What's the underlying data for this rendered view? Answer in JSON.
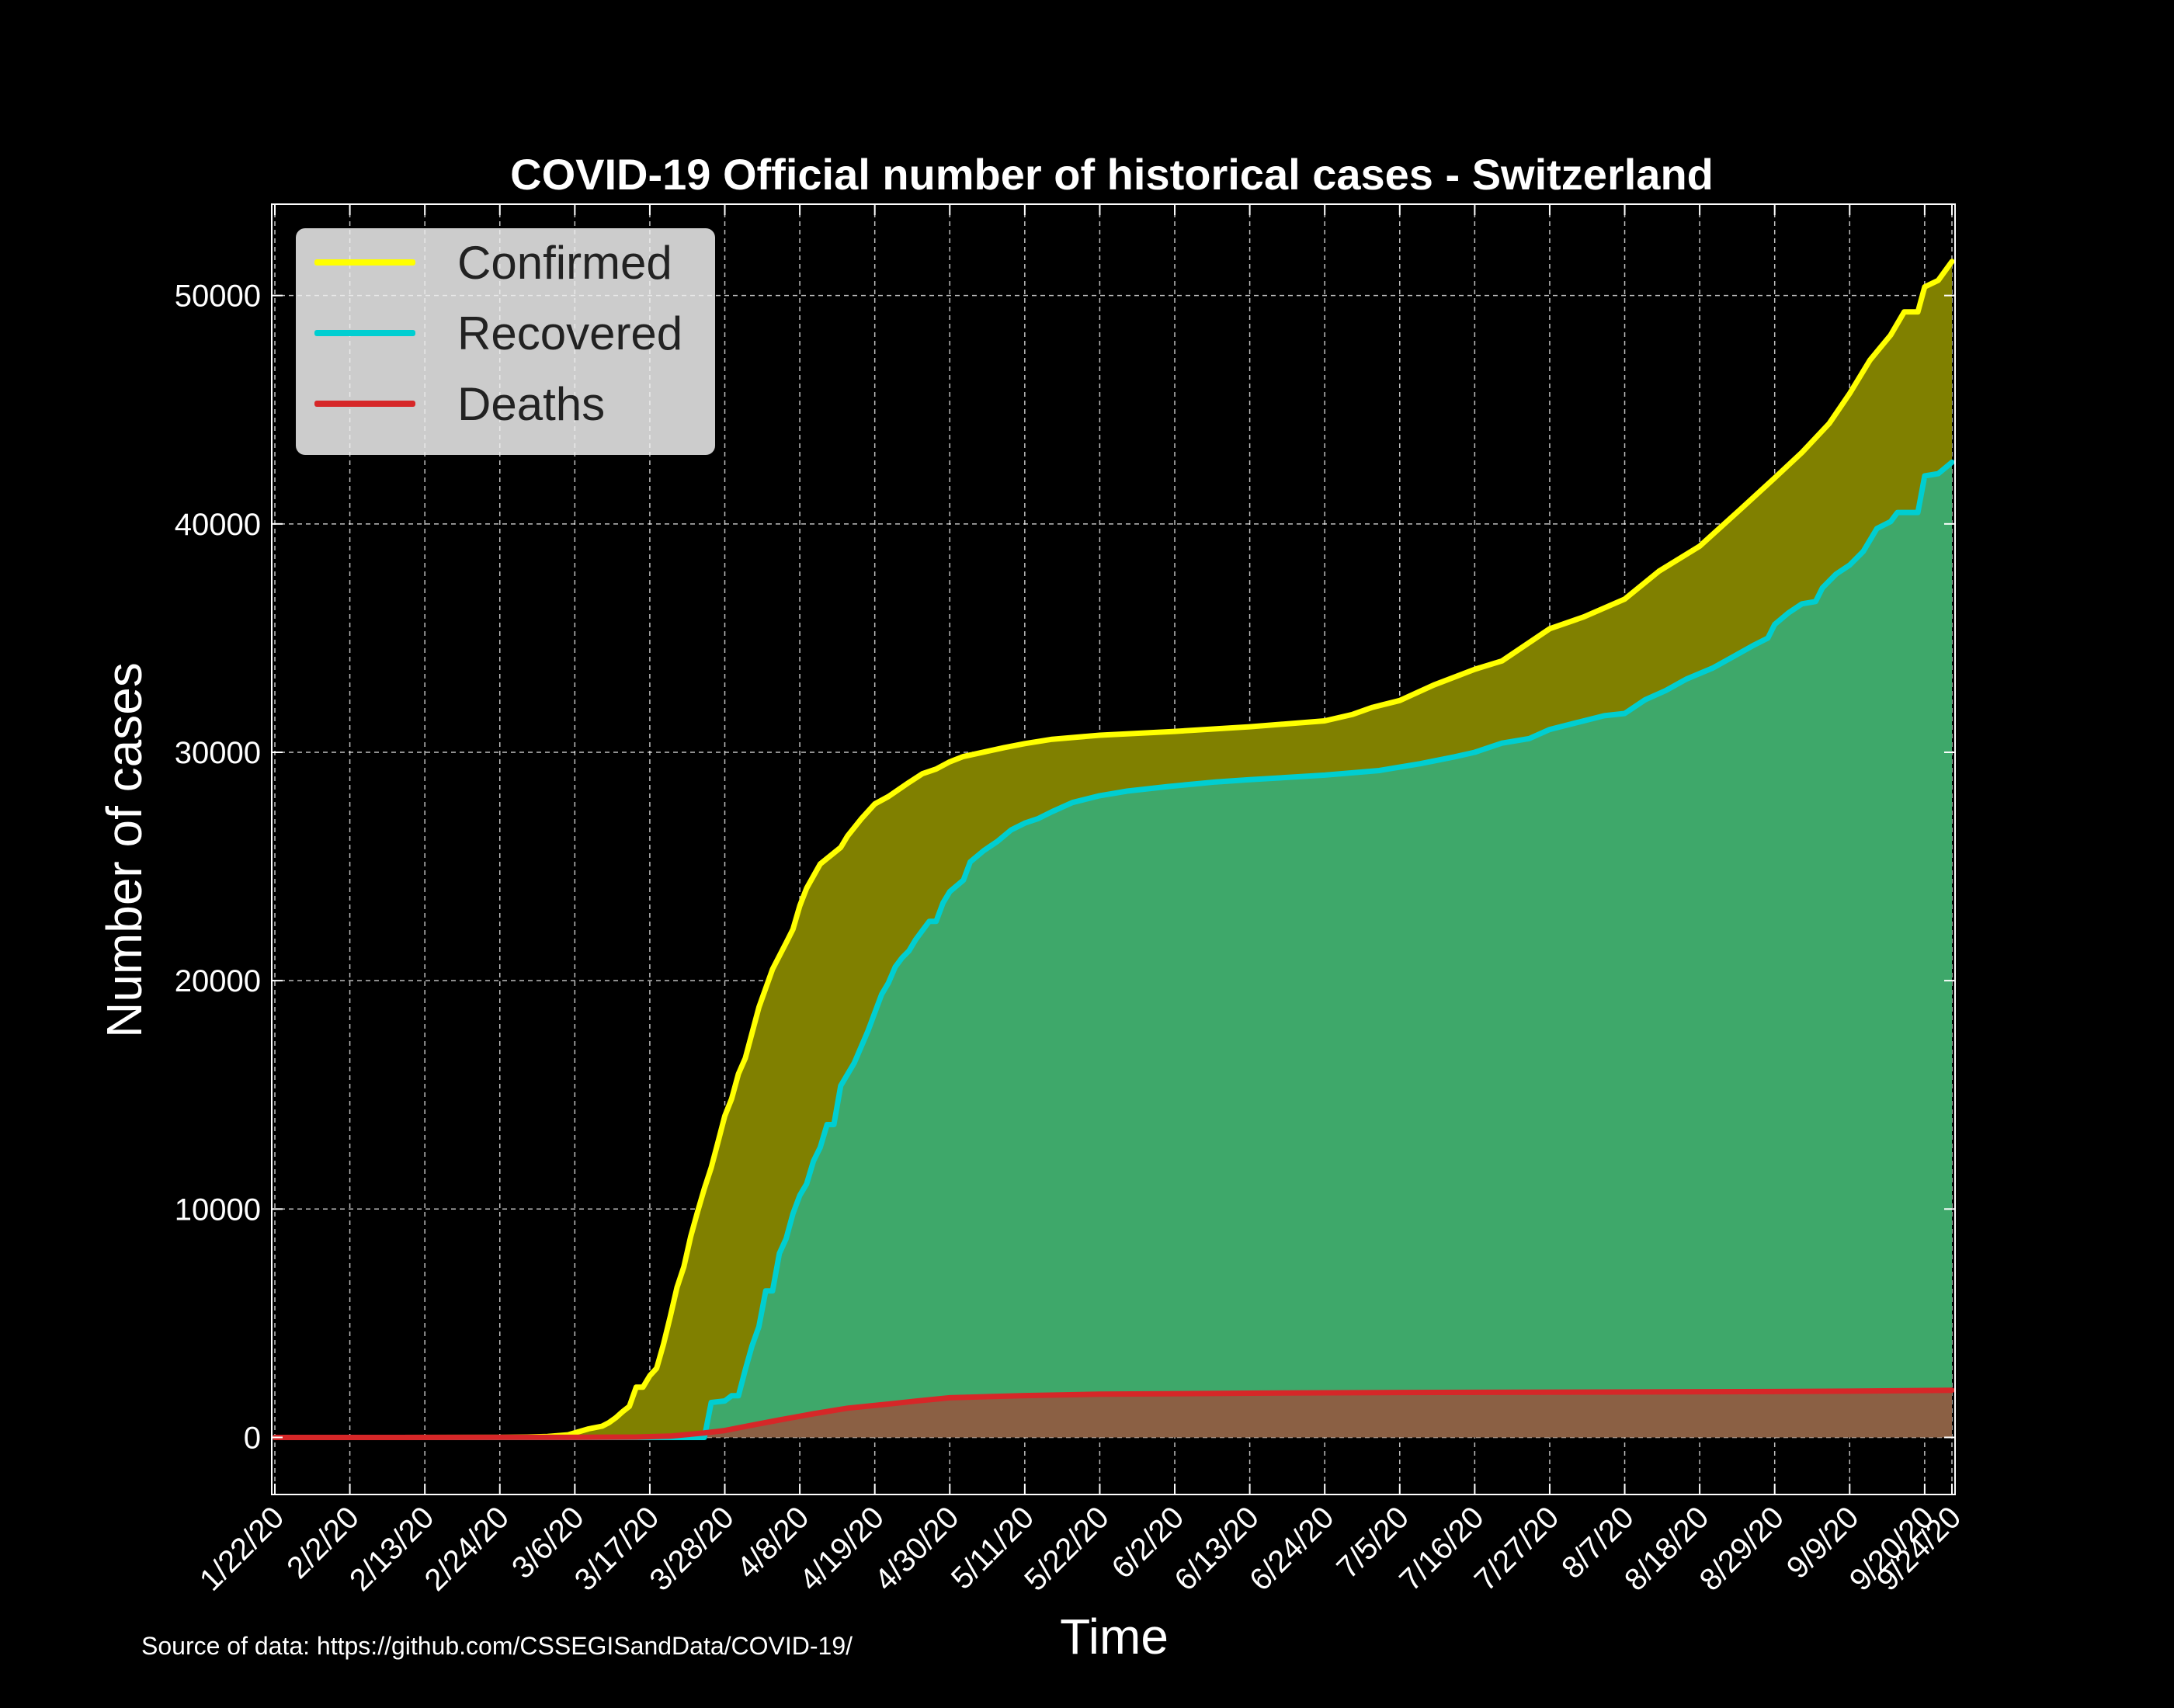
{
  "source_note": "Source of data: https://github.com/CSSEGISandData/COVID-19/",
  "chart_data": {
    "type": "area",
    "title": "COVID-19 Official number of historical cases - Switzerland",
    "xlabel": "Time",
    "ylabel": "Number of cases",
    "ylim": [
      -2500,
      54000
    ],
    "yticks": [
      0,
      10000,
      20000,
      30000,
      40000,
      50000
    ],
    "xtick_labels": [
      "1/22/20",
      "2/2/20",
      "2/13/20",
      "2/24/20",
      "3/6/20",
      "3/17/20",
      "3/28/20",
      "4/8/20",
      "4/19/20",
      "4/30/20",
      "5/11/20",
      "5/22/20",
      "6/2/20",
      "6/13/20",
      "6/24/20",
      "7/5/20",
      "7/16/20",
      "7/27/20",
      "8/7/20",
      "8/18/20",
      "8/29/20",
      "9/9/20",
      "9/20/20",
      "9/24/20"
    ],
    "grid": true,
    "legend_position": "top-left",
    "x_first": "1/22/20",
    "x_last": "9/24/20",
    "series": [
      {
        "name": "Confirmed",
        "color": "#ffff00",
        "fill": "#808000",
        "points": [
          [
            "1/22/20",
            0
          ],
          [
            "2/24/20",
            1
          ],
          [
            "2/28/20",
            15
          ],
          [
            "3/2/20",
            42
          ],
          [
            "3/5/20",
            114
          ],
          [
            "3/8/20",
            374
          ],
          [
            "3/10/20",
            491
          ],
          [
            "3/11/20",
            645
          ],
          [
            "3/12/20",
            858
          ],
          [
            "3/13/20",
            1125
          ],
          [
            "3/14/20",
            1359
          ],
          [
            "3/15/20",
            2200
          ],
          [
            "3/16/20",
            2200
          ],
          [
            "3/17/20",
            2700
          ],
          [
            "3/18/20",
            3028
          ],
          [
            "3/19/20",
            4075
          ],
          [
            "3/20/20",
            5294
          ],
          [
            "3/21/20",
            6575
          ],
          [
            "3/22/20",
            7474
          ],
          [
            "3/23/20",
            8795
          ],
          [
            "3/24/20",
            9877
          ],
          [
            "3/25/20",
            10897
          ],
          [
            "3/26/20",
            11811
          ],
          [
            "3/27/20",
            12928
          ],
          [
            "3/28/20",
            14076
          ],
          [
            "3/29/20",
            14829
          ],
          [
            "3/30/20",
            15922
          ],
          [
            "3/31/20",
            16605
          ],
          [
            "4/2/20",
            18827
          ],
          [
            "4/4/20",
            20505
          ],
          [
            "4/6/20",
            21657
          ],
          [
            "4/7/20",
            22253
          ],
          [
            "4/8/20",
            23280
          ],
          [
            "4/9/20",
            24051
          ],
          [
            "4/11/20",
            25107
          ],
          [
            "4/14/20",
            25834
          ],
          [
            "4/15/20",
            26336
          ],
          [
            "4/17/20",
            27078
          ],
          [
            "4/19/20",
            27740
          ],
          [
            "4/21/20",
            28063
          ],
          [
            "4/24/20",
            28677
          ],
          [
            "4/26/20",
            29061
          ],
          [
            "4/28/20",
            29264
          ],
          [
            "4/30/20",
            29586
          ],
          [
            "5/2/20",
            29817
          ],
          [
            "5/5/20",
            30009
          ],
          [
            "5/8/20",
            30207
          ],
          [
            "5/11/20",
            30380
          ],
          [
            "5/15/20",
            30572
          ],
          [
            "5/22/20",
            30746
          ],
          [
            "6/2/20",
            30913
          ],
          [
            "6/13/20",
            31117
          ],
          [
            "6/24/20",
            31376
          ],
          [
            "6/28/20",
            31652
          ],
          [
            "7/1/20",
            31967
          ],
          [
            "7/5/20",
            32268
          ],
          [
            "7/10/20",
            32946
          ],
          [
            "7/16/20",
            33634
          ],
          [
            "7/20/20",
            34000
          ],
          [
            "7/27/20",
            35412
          ],
          [
            "8/1/20",
            35927
          ],
          [
            "8/7/20",
            36708
          ],
          [
            "8/12/20",
            37924
          ],
          [
            "8/18/20",
            39026
          ],
          [
            "8/24/20",
            40645
          ],
          [
            "8/29/20",
            42014
          ],
          [
            "9/2/20",
            43127
          ],
          [
            "9/6/20",
            44401
          ],
          [
            "9/9/20",
            45711
          ],
          [
            "9/12/20",
            47179
          ],
          [
            "9/15/20",
            48265
          ],
          [
            "9/17/20",
            49283
          ],
          [
            "9/19/20",
            49283
          ],
          [
            "9/20/20",
            50378
          ],
          [
            "9/22/20",
            50664
          ],
          [
            "9/24/20",
            51492
          ]
        ]
      },
      {
        "name": "Recovered",
        "color": "#00ced1",
        "fill": "#3ea86a",
        "points": [
          [
            "1/22/20",
            0
          ],
          [
            "3/25/20",
            0
          ],
          [
            "3/26/20",
            1530
          ],
          [
            "3/28/20",
            1595
          ],
          [
            "3/29/20",
            1823
          ],
          [
            "3/30/20",
            1823
          ],
          [
            "3/31/20",
            2967
          ],
          [
            "4/1/20",
            4013
          ],
          [
            "4/2/20",
            4846
          ],
          [
            "4/3/20",
            6415
          ],
          [
            "4/4/20",
            6415
          ],
          [
            "4/5/20",
            8056
          ],
          [
            "4/6/20",
            8704
          ],
          [
            "4/7/20",
            9800
          ],
          [
            "4/8/20",
            10600
          ],
          [
            "4/9/20",
            11100
          ],
          [
            "4/10/20",
            12100
          ],
          [
            "4/11/20",
            12700
          ],
          [
            "4/12/20",
            13700
          ],
          [
            "4/13/20",
            13700
          ],
          [
            "4/14/20",
            15400
          ],
          [
            "4/15/20",
            15900
          ],
          [
            "4/16/20",
            16400
          ],
          [
            "4/17/20",
            17100
          ],
          [
            "4/18/20",
            17800
          ],
          [
            "4/19/20",
            18600
          ],
          [
            "4/20/20",
            19400
          ],
          [
            "4/21/20",
            19900
          ],
          [
            "4/22/20",
            20600
          ],
          [
            "4/23/20",
            21000
          ],
          [
            "4/24/20",
            21300
          ],
          [
            "4/25/20",
            21800
          ],
          [
            "4/26/20",
            22200
          ],
          [
            "4/27/20",
            22600
          ],
          [
            "4/28/20",
            22600
          ],
          [
            "4/29/20",
            23400
          ],
          [
            "4/30/20",
            23900
          ],
          [
            "5/2/20",
            24400
          ],
          [
            "5/3/20",
            25200
          ],
          [
            "5/5/20",
            25700
          ],
          [
            "5/7/20",
            26100
          ],
          [
            "5/9/20",
            26600
          ],
          [
            "5/11/20",
            26900
          ],
          [
            "5/13/20",
            27100
          ],
          [
            "5/15/20",
            27400
          ],
          [
            "5/18/20",
            27800
          ],
          [
            "5/22/20",
            28100
          ],
          [
            "5/26/20",
            28300
          ],
          [
            "6/1/20",
            28500
          ],
          [
            "6/8/20",
            28700
          ],
          [
            "6/13/20",
            28800
          ],
          [
            "6/24/20",
            29000
          ],
          [
            "7/2/20",
            29200
          ],
          [
            "7/8/20",
            29500
          ],
          [
            "7/13/20",
            29800
          ],
          [
            "7/16/20",
            30000
          ],
          [
            "7/20/20",
            30400
          ],
          [
            "7/24/20",
            30600
          ],
          [
            "7/27/20",
            31000
          ],
          [
            "7/31/20",
            31300
          ],
          [
            "8/4/20",
            31600
          ],
          [
            "8/7/20",
            31700
          ],
          [
            "8/10/20",
            32300
          ],
          [
            "8/13/20",
            32700
          ],
          [
            "8/16/20",
            33200
          ],
          [
            "8/20/20",
            33700
          ],
          [
            "8/23/20",
            34200
          ],
          [
            "8/26/20",
            34700
          ],
          [
            "8/28/20",
            35000
          ],
          [
            "8/29/20",
            35600
          ],
          [
            "8/31/20",
            36100
          ],
          [
            "9/2/20",
            36500
          ],
          [
            "9/4/20",
            36600
          ],
          [
            "9/5/20",
            37200
          ],
          [
            "9/7/20",
            37800
          ],
          [
            "9/9/20",
            38200
          ],
          [
            "9/11/20",
            38800
          ],
          [
            "9/13/20",
            39800
          ],
          [
            "9/15/20",
            40100
          ],
          [
            "9/16/20",
            40500
          ],
          [
            "9/19/20",
            40500
          ],
          [
            "9/20/20",
            42100
          ],
          [
            "9/22/20",
            42200
          ],
          [
            "9/24/20",
            42700
          ]
        ]
      },
      {
        "name": "Deaths",
        "color": "#d62728",
        "fill": "#8b6044",
        "points": [
          [
            "1/22/20",
            0
          ],
          [
            "3/5/20",
            1
          ],
          [
            "3/15/20",
            14
          ],
          [
            "3/20/20",
            56
          ],
          [
            "3/25/20",
            197
          ],
          [
            "3/28/20",
            300
          ],
          [
            "4/1/20",
            536
          ],
          [
            "4/5/20",
            765
          ],
          [
            "4/10/20",
            1036
          ],
          [
            "4/15/20",
            1281
          ],
          [
            "4/20/20",
            1429
          ],
          [
            "4/25/20",
            1589
          ],
          [
            "4/30/20",
            1737
          ],
          [
            "5/11/20",
            1830
          ],
          [
            "5/22/20",
            1892
          ],
          [
            "6/13/20",
            1937
          ],
          [
            "7/5/20",
            1966
          ],
          [
            "8/7/20",
            1986
          ],
          [
            "8/29/20",
            2008
          ],
          [
            "9/9/20",
            2026
          ],
          [
            "9/24/20",
            2067
          ]
        ]
      }
    ]
  }
}
